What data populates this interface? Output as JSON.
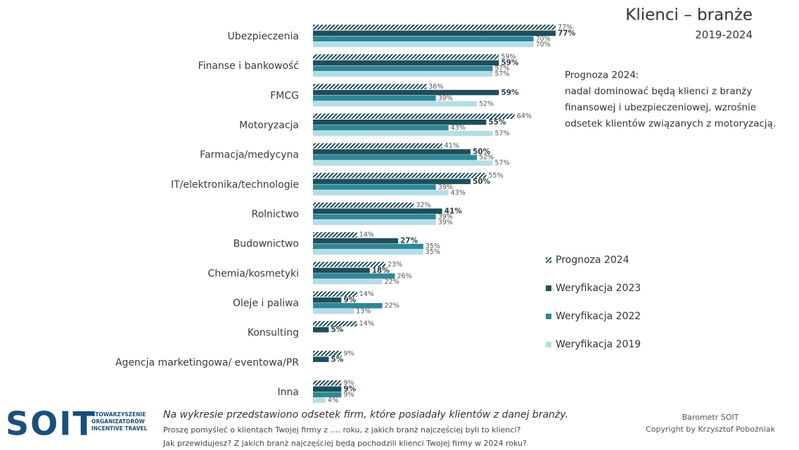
{
  "chart_data": {
    "type": "bar",
    "orientation": "horizontal",
    "title": "Klienci – branże",
    "subtitle": "2019-2024",
    "annotation": [
      "Prognoza 2024:",
      "nadal dominować będą klienci z branży",
      "finansowej i ubezpieczeniowej, wzrośnie",
      "odsetek klientów związanych z motoryzacją."
    ],
    "categories": [
      "Ubezpieczenia",
      "Finanse i bankowość",
      "FMCG",
      "Motoryzacja",
      "Farmacja/medycyna",
      "IT/elektronika/technologie",
      "Rolnictwo",
      "Budownictwo",
      "Chemia/kosmetyki",
      "Oleje i paliwa",
      "Konsulting",
      "Agencja marketingowa/ eventowa/PR",
      "Inna"
    ],
    "series": [
      {
        "name": "Prognoza 2024",
        "color": "#1d4e5c",
        "pattern": "hatched",
        "values": [
          77,
          59,
          36,
          64,
          41,
          55,
          32,
          14,
          23,
          14,
          14,
          9,
          9
        ],
        "value_labels": [
          "77%",
          "59%",
          "36%",
          "64%",
          "41%",
          "55%",
          "32%",
          "14%",
          "23%",
          "14%",
          "14%",
          "9%",
          "9%"
        ]
      },
      {
        "name": "Weryfikacja 2023",
        "color": "#1d4e5c",
        "bold_labels": true,
        "values": [
          77,
          59,
          59,
          55,
          50,
          50,
          41,
          27,
          18,
          9,
          5,
          5,
          9
        ],
        "value_labels": [
          "77%",
          "59%",
          "59%",
          "55%",
          "50%",
          "50%",
          "41%",
          "27%",
          "18%",
          "9%",
          "5%",
          "5%",
          "9%"
        ]
      },
      {
        "name": "Weryfikacja 2022",
        "color": "#2f8797",
        "values": [
          70,
          57,
          39,
          43,
          52,
          39,
          39,
          35,
          26,
          22,
          null,
          null,
          9
        ],
        "value_labels": [
          "70%",
          "57%",
          "39%",
          "43%",
          "52%",
          "39%",
          "39%",
          "35%",
          "26%",
          "22%",
          null,
          null,
          "9%"
        ]
      },
      {
        "name": "Weryfikacja 2019",
        "color": "#b5dde6",
        "values": [
          70,
          57,
          52,
          57,
          57,
          43,
          39,
          35,
          22,
          13,
          null,
          null,
          4
        ],
        "value_labels": [
          "70%",
          "57%",
          "52%",
          "57%",
          "57%",
          "43%",
          "39%",
          "35%",
          "22%",
          "13%",
          null,
          null,
          "4%"
        ]
      }
    ],
    "legend": "right"
  },
  "footer": {
    "note": "Na wykresie przedstawiono odsetek firm, które posiadały klientów z danej branży.",
    "questions": [
      "Proszę pomyśleć o klientach Twojej firmy z …. roku, z jakich branż najczęściej byli to klienci?",
      "Jak przewidujesz? Z jakich branż najczęściej będą pochodzili klienci Twojej firmy w 2024 roku?"
    ],
    "source": "Barometr SOIT",
    "copyright": "Copyright by Krzysztof Pobożniak"
  },
  "logo": {
    "text": "SOIT",
    "lines": [
      "STOWARZYSZENIE",
      "ORGANIZATORÓW",
      "INCENTIVE TRAVEL"
    ]
  }
}
